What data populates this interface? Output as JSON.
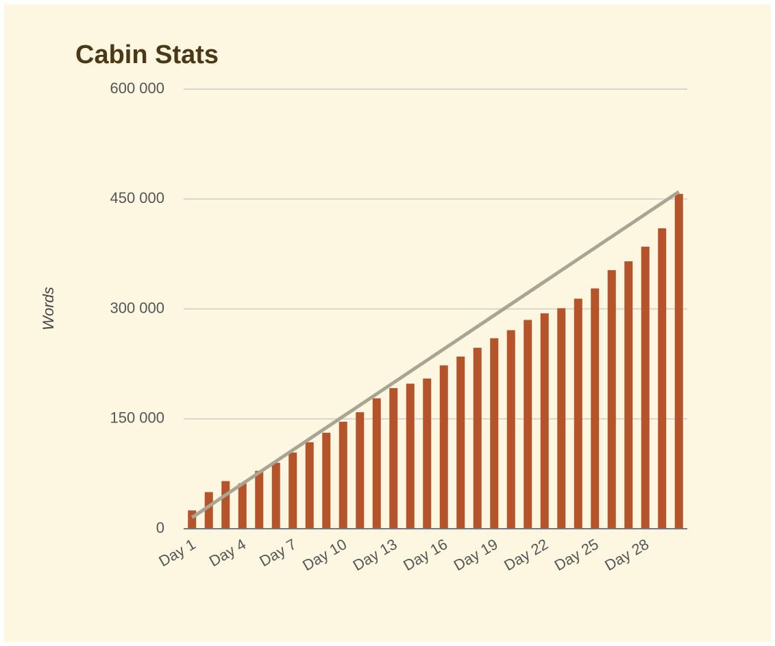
{
  "chart_data": {
    "type": "bar",
    "title": "Cabin Stats",
    "y_label": "Words",
    "categories": [
      "Day 1",
      null,
      null,
      "Day 4",
      null,
      null,
      "Day 7",
      null,
      null,
      "Day 10",
      null,
      null,
      "Day 13",
      null,
      null,
      "Day 16",
      null,
      null,
      "Day 19",
      null,
      null,
      "Day 22",
      null,
      null,
      "Day 25",
      null,
      null,
      "Day 28",
      null,
      null
    ],
    "series": [
      {
        "type": "bar",
        "color": "#b5532a",
        "values": [
          25000,
          50000,
          65000,
          62000,
          79000,
          90000,
          104000,
          118000,
          131000,
          146000,
          159000,
          178000,
          192000,
          198000,
          205000,
          223000,
          235000,
          247000,
          260000,
          271000,
          285000,
          294000,
          301000,
          314000,
          328000,
          353000,
          365000,
          385000,
          410000,
          457000
        ]
      },
      {
        "type": "line",
        "color": "#aaa493",
        "values": [
          15333,
          30667,
          46000,
          61333,
          76667,
          92000,
          107333,
          122667,
          138000,
          153333,
          168667,
          184000,
          199333,
          214667,
          230000,
          245333,
          260667,
          276000,
          291333,
          306667,
          322000,
          337333,
          352667,
          368000,
          383333,
          398667,
          414000,
          429333,
          444667,
          460000
        ]
      }
    ],
    "ylim": [
      0,
      600000
    ],
    "yticks": [
      0,
      {
        "value": 150000,
        "label": "150 000"
      },
      {
        "value": 300000,
        "label": "300 000"
      },
      {
        "value": 450000,
        "label": "450 000"
      },
      {
        "value": 600000,
        "label": "600 000"
      }
    ],
    "grid": true
  }
}
